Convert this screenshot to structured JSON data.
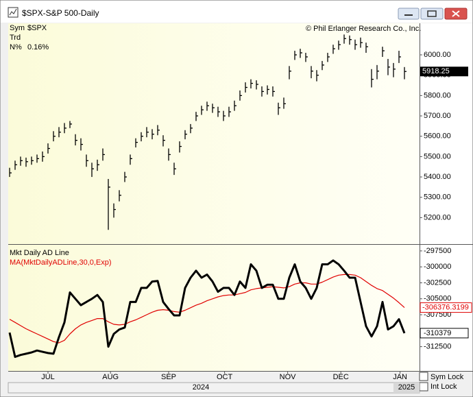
{
  "window": {
    "title": "$SPX-S&P 500-Daily",
    "copyright": "© Phil Erlanger Research Co., Inc.",
    "info": [
      [
        "Sym",
        "$SPX"
      ],
      [
        "Trd"
      ],
      [
        "N%",
        "0.16%"
      ]
    ],
    "controls": [
      "Sym Lock",
      "Int Lock"
    ]
  },
  "chart_data": [
    {
      "type": "ohlc",
      "xlim": [
        -0.25,
        74.75
      ],
      "ylim": [
        5070,
        6155
      ],
      "yticks": [
        {
          "value": 5200,
          "label": "5200.00"
        },
        {
          "value": 5300,
          "label": "5300.00"
        },
        {
          "value": 5400,
          "label": "5400.00"
        },
        {
          "value": 5500,
          "label": "5500.00"
        },
        {
          "value": 5600,
          "label": "5600.00"
        },
        {
          "value": 5700,
          "label": "5700.00"
        },
        {
          "value": 5800,
          "label": "5800.00"
        },
        {
          "value": 5900,
          "label": "5900.00"
        },
        {
          "value": 6000,
          "label": "6000.00"
        }
      ],
      "series": [
        {
          "name": "$SPX",
          "color": "#000000",
          "high": [
            5445,
            5480,
            5500,
            5495,
            5500,
            5510,
            5525,
            5565,
            5625,
            5645,
            5665,
            5675,
            5610,
            5590,
            5510,
            5470,
            5485,
            5540,
            5390,
            5270,
            5335,
            5425,
            5510,
            5590,
            5620,
            5645,
            5635,
            5655,
            5605,
            5540,
            5470,
            5575,
            5630,
            5660,
            5720,
            5750,
            5770,
            5760,
            5745,
            5725,
            5745,
            5775,
            5825,
            5865,
            5880,
            5875,
            5845,
            5850,
            5845,
            5765,
            5790,
            5945,
            6020,
            6030,
            6010,
            5945,
            5925,
            5970,
            6010,
            6050,
            6070,
            6100,
            6095,
            6075,
            6085,
            6060,
            5930,
            5950,
            6040,
            5980,
            5960,
            6020,
            5940
          ],
          "low": [
            5400,
            5435,
            5455,
            5450,
            5460,
            5470,
            5475,
            5515,
            5575,
            5595,
            5615,
            5640,
            5555,
            5530,
            5450,
            5400,
            5430,
            5480,
            5140,
            5200,
            5280,
            5375,
            5460,
            5545,
            5575,
            5595,
            5585,
            5605,
            5550,
            5480,
            5410,
            5520,
            5585,
            5615,
            5675,
            5705,
            5725,
            5715,
            5695,
            5675,
            5695,
            5725,
            5775,
            5815,
            5835,
            5830,
            5795,
            5805,
            5795,
            5705,
            5735,
            5880,
            5975,
            5985,
            5965,
            5885,
            5870,
            5925,
            5965,
            6005,
            6025,
            6055,
            6050,
            6025,
            6035,
            6010,
            5840,
            5880,
            5990,
            5900,
            5890,
            5960,
            5880
          ],
          "close": [
            5420,
            5460,
            5480,
            5475,
            5480,
            5490,
            5500,
            5540,
            5600,
            5620,
            5640,
            5660,
            5580,
            5560,
            5480,
            5440,
            5460,
            5510,
            5350,
            5240,
            5310,
            5400,
            5490,
            5570,
            5600,
            5620,
            5610,
            5630,
            5580,
            5510,
            5440,
            5550,
            5610,
            5640,
            5700,
            5730,
            5750,
            5740,
            5720,
            5700,
            5720,
            5750,
            5800,
            5840,
            5860,
            5855,
            5820,
            5830,
            5820,
            5740,
            5760,
            5920,
            6000,
            6010,
            5990,
            5920,
            5900,
            5950,
            5990,
            6030,
            6050,
            6080,
            6075,
            6050,
            6060,
            6040,
            5880,
            5920,
            6020,
            5940,
            5930,
            5990,
            5918.25
          ]
        }
      ]
    },
    {
      "type": "line",
      "xlim": [
        -0.25,
        74.75
      ],
      "ylim": [
        -316300,
        -296650
      ],
      "yticks": [
        -297500,
        -300000,
        -302500,
        -305000,
        -307500,
        -312500
      ],
      "xticks": [
        {
          "value": 7,
          "label": "JUL"
        },
        {
          "value": 18.4,
          "label": "AUG"
        },
        {
          "value": 29,
          "label": "SEP"
        },
        {
          "value": 39.2,
          "label": "OCT"
        },
        {
          "value": 50.7,
          "label": "NOV"
        },
        {
          "value": 60.4,
          "label": "DEC"
        },
        {
          "value": 71.2,
          "label": "JAN"
        }
      ],
      "year_labels": [
        "2024",
        "2025"
      ],
      "series": [
        {
          "name": "Mkt Daily AD Line",
          "color": "#000000",
          "values": [
            -310300,
            -314100,
            -313800,
            -313600,
            -313400,
            -313100,
            -313300,
            -313500,
            -313600,
            -311000,
            -308700,
            -304000,
            -305000,
            -306000,
            -305500,
            -305000,
            -304400,
            -305500,
            -312500,
            -310500,
            -309800,
            -309500,
            -305500,
            -305500,
            -303300,
            -303300,
            -302300,
            -302200,
            -305500,
            -306600,
            -307600,
            -307600,
            -303300,
            -301700,
            -300600,
            -301700,
            -301200,
            -302300,
            -303900,
            -303300,
            -303300,
            -304400,
            -302300,
            -303300,
            -299600,
            -300600,
            -303300,
            -302800,
            -302800,
            -305000,
            -305000,
            -301700,
            -299600,
            -302300,
            -303300,
            -305000,
            -303300,
            -299600,
            -299600,
            -299000,
            -299600,
            -300600,
            -301700,
            -301700,
            -305500,
            -309300,
            -310900,
            -309300,
            -305500,
            -309800,
            -309300,
            -308200,
            -310379
          ]
        },
        {
          "name": "MA(MktDailyADLine,30,0,Exp)",
          "color": "#e00000",
          "values": [
            -308200,
            -308700,
            -309200,
            -309700,
            -310100,
            -310500,
            -310900,
            -311300,
            -311700,
            -311900,
            -311500,
            -310500,
            -309700,
            -309100,
            -308700,
            -308400,
            -308100,
            -308100,
            -308600,
            -309000,
            -309100,
            -309000,
            -308600,
            -308300,
            -307900,
            -307500,
            -307100,
            -306800,
            -306700,
            -306800,
            -307000,
            -307100,
            -306800,
            -306400,
            -306000,
            -305700,
            -305300,
            -305000,
            -304700,
            -304500,
            -304400,
            -304400,
            -304200,
            -304000,
            -303600,
            -303400,
            -303300,
            -303200,
            -303100,
            -303200,
            -303300,
            -303100,
            -302700,
            -302500,
            -302500,
            -302700,
            -302700,
            -302400,
            -302000,
            -301600,
            -301300,
            -301200,
            -301200,
            -301300,
            -301700,
            -302300,
            -302900,
            -303400,
            -303700,
            -304300,
            -304900,
            -305600,
            -306376.3199
          ]
        }
      ]
    }
  ]
}
